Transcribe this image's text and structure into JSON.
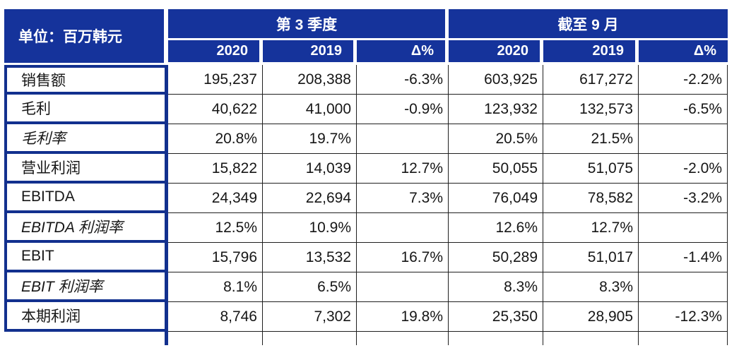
{
  "theme": {
    "header_blue": "#15339B",
    "label_border_blue": "#12308E",
    "grid_line": "#1f1f1f",
    "background": "#ffffff"
  },
  "table": {
    "unit_label": "单位：百万韩元",
    "groups": [
      {
        "label": "第 3 季度",
        "columns": [
          "2020",
          "2019",
          "Δ%"
        ]
      },
      {
        "label": "截至 9 月",
        "columns": [
          "2020",
          "2019",
          "Δ%"
        ]
      }
    ],
    "rows": [
      {
        "label": "销售额",
        "italic": false,
        "q3": [
          "195,237",
          "208,388",
          "-6.3%"
        ],
        "ytd": [
          "603,925",
          "617,272",
          "-2.2%"
        ]
      },
      {
        "label": "毛利",
        "italic": false,
        "q3": [
          "40,622",
          "41,000",
          "-0.9%"
        ],
        "ytd": [
          "123,932",
          "132,573",
          "-6.5%"
        ]
      },
      {
        "label": "毛利率",
        "italic": true,
        "q3": [
          "20.8%",
          "19.7%",
          ""
        ],
        "ytd": [
          "20.5%",
          "21.5%",
          ""
        ]
      },
      {
        "label": "营业利润",
        "italic": false,
        "q3": [
          "15,822",
          "14,039",
          "12.7%"
        ],
        "ytd": [
          "50,055",
          "51,075",
          "-2.0%"
        ]
      },
      {
        "label": "EBITDA",
        "italic": false,
        "q3": [
          "24,349",
          "22,694",
          "7.3%"
        ],
        "ytd": [
          "76,049",
          "78,582",
          "-3.2%"
        ]
      },
      {
        "label": "EBITDA 利润率",
        "italic": true,
        "q3": [
          "12.5%",
          "10.9%",
          ""
        ],
        "ytd": [
          "12.6%",
          "12.7%",
          ""
        ]
      },
      {
        "label": "EBIT",
        "italic": false,
        "q3": [
          "15,796",
          "13,532",
          "16.7%"
        ],
        "ytd": [
          "50,289",
          "51,017",
          "-1.4%"
        ]
      },
      {
        "label": "EBIT 利润率",
        "italic": true,
        "q3": [
          "8.1%",
          "6.5%",
          ""
        ],
        "ytd": [
          "8.3%",
          "8.3%",
          ""
        ]
      },
      {
        "label": "本期利润",
        "italic": false,
        "q3": [
          "8,746",
          "7,302",
          "19.8%"
        ],
        "ytd": [
          "25,350",
          "28,905",
          "-12.3%"
        ]
      }
    ]
  }
}
